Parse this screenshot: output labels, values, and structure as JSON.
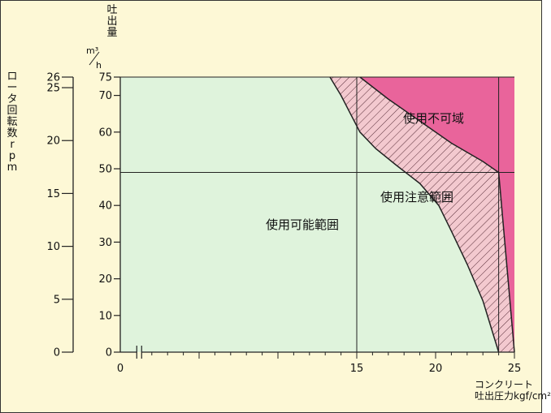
{
  "chart_data": {
    "type": "area",
    "x_axis": {
      "title_line1": "コンクリート",
      "title_line2": "吐出圧力kgf/cm²",
      "range": [
        0,
        25
      ],
      "ticks": [
        {
          "value": 0,
          "label": "0"
        },
        {
          "value": 5,
          "label": ""
        },
        {
          "value": 10,
          "label": ""
        },
        {
          "value": 15,
          "label": "15"
        },
        {
          "value": 20,
          "label": "20"
        },
        {
          "value": 25,
          "label": "25"
        }
      ],
      "axis_break_near": 1.2
    },
    "y_axis_flow": {
      "title": "吐出量",
      "unit_top": "m³",
      "unit_bottom": "h",
      "range": [
        0,
        75
      ],
      "ticks": [
        0,
        10,
        20,
        30,
        40,
        50,
        60,
        70,
        75
      ]
    },
    "y_axis_rpm": {
      "title": "ロータ回転数rpm",
      "ticks": [
        0,
        5,
        10,
        15,
        20,
        25,
        26
      ],
      "max": 26
    },
    "regions": [
      {
        "name": "使用可能範囲",
        "color": "#dff3dc"
      },
      {
        "name": "使用注意範囲",
        "color": "#f3c9cf",
        "pattern": "diagonal-hatch"
      },
      {
        "name": "使用不可域",
        "color": "#e9649b"
      }
    ],
    "boundary_safe": [
      [
        13.3,
        75
      ],
      [
        14.0,
        70
      ],
      [
        14.6,
        65
      ],
      [
        15.2,
        60
      ],
      [
        16.2,
        55.5
      ],
      [
        17.5,
        51
      ],
      [
        19.0,
        46
      ],
      [
        20.2,
        40
      ],
      [
        21.0,
        33
      ],
      [
        22.0,
        24
      ],
      [
        23.0,
        14
      ],
      [
        24.0,
        0
      ]
    ],
    "boundary_danger": [
      [
        15.2,
        75
      ],
      [
        17.0,
        69
      ],
      [
        19.0,
        63
      ],
      [
        21.0,
        57
      ],
      [
        23.0,
        52
      ],
      [
        24.0,
        49
      ],
      [
        25.0,
        0
      ]
    ],
    "reference_lines": [
      {
        "axis": "x",
        "value": 15
      },
      {
        "axis": "x",
        "value": 24
      },
      {
        "axis": "y",
        "value": 49
      }
    ]
  }
}
